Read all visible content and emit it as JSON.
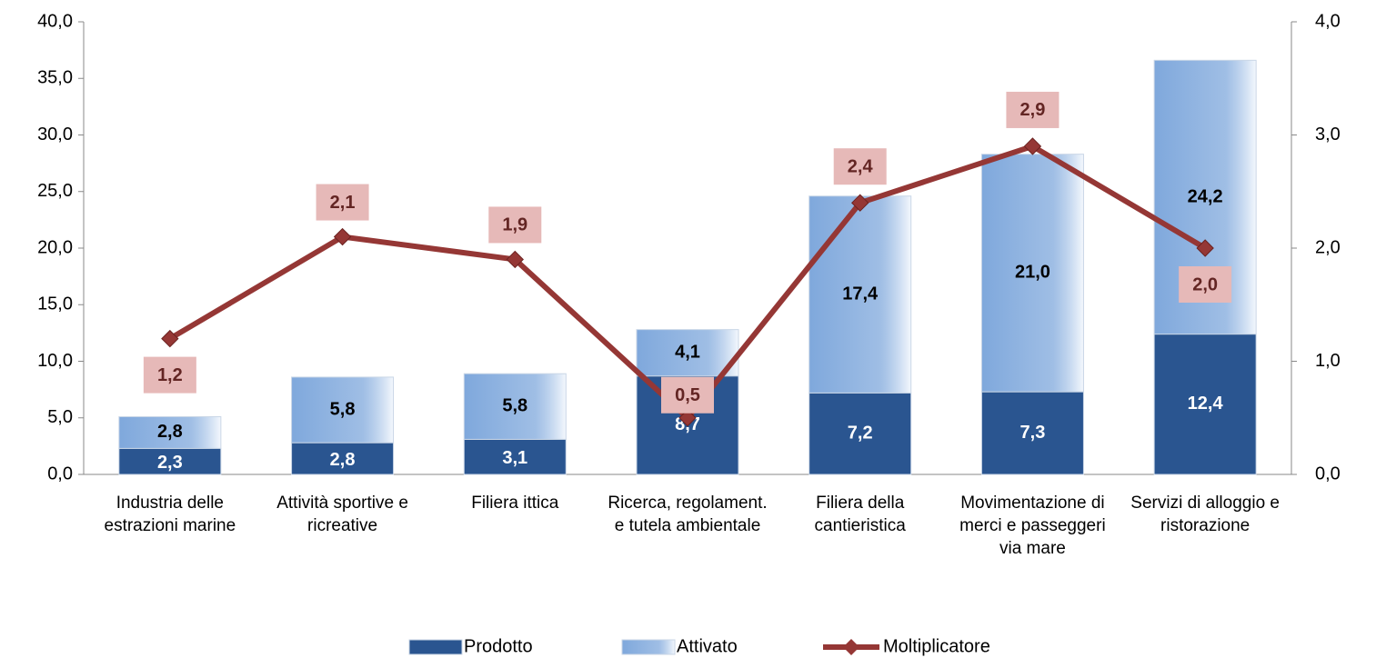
{
  "chart_data": {
    "type": "bar",
    "categories": [
      "Industria delle estrazioni marine",
      "Attività sportive e ricreative",
      "Filiera ittica",
      "Ricerca, regolament. e tutela ambientale",
      "Filiera della cantieristica",
      "Movimentazione di merci e passeggeri via mare",
      "Servizi di alloggio e ristorazione"
    ],
    "series": [
      {
        "name": "Prodotto",
        "type": "bar",
        "color": "#2a5590",
        "values": [
          2.3,
          2.8,
          3.1,
          8.7,
          7.2,
          7.3,
          12.4
        ],
        "value_labels": [
          "2,3",
          "2,8",
          "3,1",
          "8,7",
          "7,2",
          "7,3",
          "12,4"
        ]
      },
      {
        "name": "Attivato",
        "type": "bar",
        "color": "#7fa8dc",
        "values": [
          2.8,
          5.8,
          5.8,
          4.1,
          17.4,
          21.0,
          24.2
        ],
        "value_labels": [
          "2,8",
          "5,8",
          "5,8",
          "4,1",
          "17,4",
          "21,0",
          "24,2"
        ]
      },
      {
        "name": "Moltiplicatore",
        "type": "line",
        "axis": "y2",
        "color": "#953735",
        "values": [
          1.2,
          2.1,
          1.9,
          0.5,
          2.4,
          2.9,
          2.0
        ],
        "value_labels": [
          "1,2",
          "2,1",
          "1,9",
          "0,5",
          "2,4",
          "2,9",
          "2,0"
        ]
      }
    ],
    "stacked": true,
    "ylim": [
      0,
      40
    ],
    "yticks": [
      {
        "value": 0,
        "label": "0,0"
      },
      {
        "value": 5,
        "label": "5,0"
      },
      {
        "value": 10,
        "label": "10,0"
      },
      {
        "value": 15,
        "label": "15,0"
      },
      {
        "value": 20,
        "label": "20,0"
      },
      {
        "value": 25,
        "label": "25,0"
      },
      {
        "value": 30,
        "label": "30,0"
      },
      {
        "value": 35,
        "label": "35,0"
      },
      {
        "value": 40,
        "label": "40,0"
      }
    ],
    "y2lim": [
      0,
      4
    ],
    "y2ticks": [
      {
        "value": 0,
        "label": "0,0"
      },
      {
        "value": 1,
        "label": "1,0"
      },
      {
        "value": 2,
        "label": "2,0"
      },
      {
        "value": 3,
        "label": "3,0"
      },
      {
        "value": 4,
        "label": "4,0"
      }
    ],
    "legend": "bottom"
  }
}
